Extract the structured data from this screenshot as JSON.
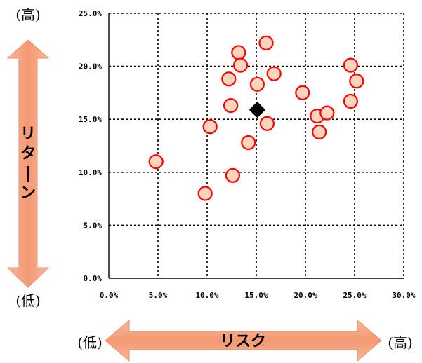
{
  "chart_data": {
    "type": "scatter",
    "xlim": [
      0,
      30
    ],
    "ylim": [
      0,
      25
    ],
    "x_ticks": [
      0,
      5,
      10,
      15,
      20,
      25,
      30
    ],
    "y_ticks": [
      0,
      5,
      10,
      15,
      20,
      25
    ],
    "x_tick_labels": [
      "0.0%",
      "5.0%",
      "10.0%",
      "15.0%",
      "20.0%",
      "25.0%",
      "30.0%"
    ],
    "y_tick_labels": [
      "0.0%",
      "5.0%",
      "10.0%",
      "15.0%",
      "20.0%",
      "25.0%"
    ],
    "grid": true,
    "xlabel": "リスク",
    "ylabel": "リターン",
    "x_low_label": "(低)",
    "x_high_label": "(高)",
    "y_low_label": "(低)",
    "y_high_label": "(高)",
    "series": [
      {
        "marker": "circle",
        "fill": "#FDD5BE",
        "stroke": "#FF0000",
        "points": [
          {
            "x": 4.8,
            "y": 11.0
          },
          {
            "x": 9.8,
            "y": 8.0
          },
          {
            "x": 10.3,
            "y": 14.3
          },
          {
            "x": 12.6,
            "y": 9.7
          },
          {
            "x": 12.2,
            "y": 18.8
          },
          {
            "x": 12.4,
            "y": 16.3
          },
          {
            "x": 13.2,
            "y": 21.3
          },
          {
            "x": 13.4,
            "y": 20.1
          },
          {
            "x": 14.2,
            "y": 12.8
          },
          {
            "x": 15.1,
            "y": 18.3
          },
          {
            "x": 16.0,
            "y": 22.2
          },
          {
            "x": 16.1,
            "y": 14.6
          },
          {
            "x": 16.8,
            "y": 19.3
          },
          {
            "x": 19.7,
            "y": 17.5
          },
          {
            "x": 21.2,
            "y": 15.3
          },
          {
            "x": 21.4,
            "y": 13.8
          },
          {
            "x": 22.2,
            "y": 15.6
          },
          {
            "x": 24.6,
            "y": 20.1
          },
          {
            "x": 24.6,
            "y": 16.7
          },
          {
            "x": 25.2,
            "y": 18.6
          }
        ]
      },
      {
        "marker": "diamond",
        "fill": "#000000",
        "stroke": "#000000",
        "points": [
          {
            "x": 15.1,
            "y": 15.9
          }
        ]
      }
    ],
    "colors": {
      "arrow_fill": "#F4A582",
      "arrow_stroke": "#F6A07C"
    }
  }
}
